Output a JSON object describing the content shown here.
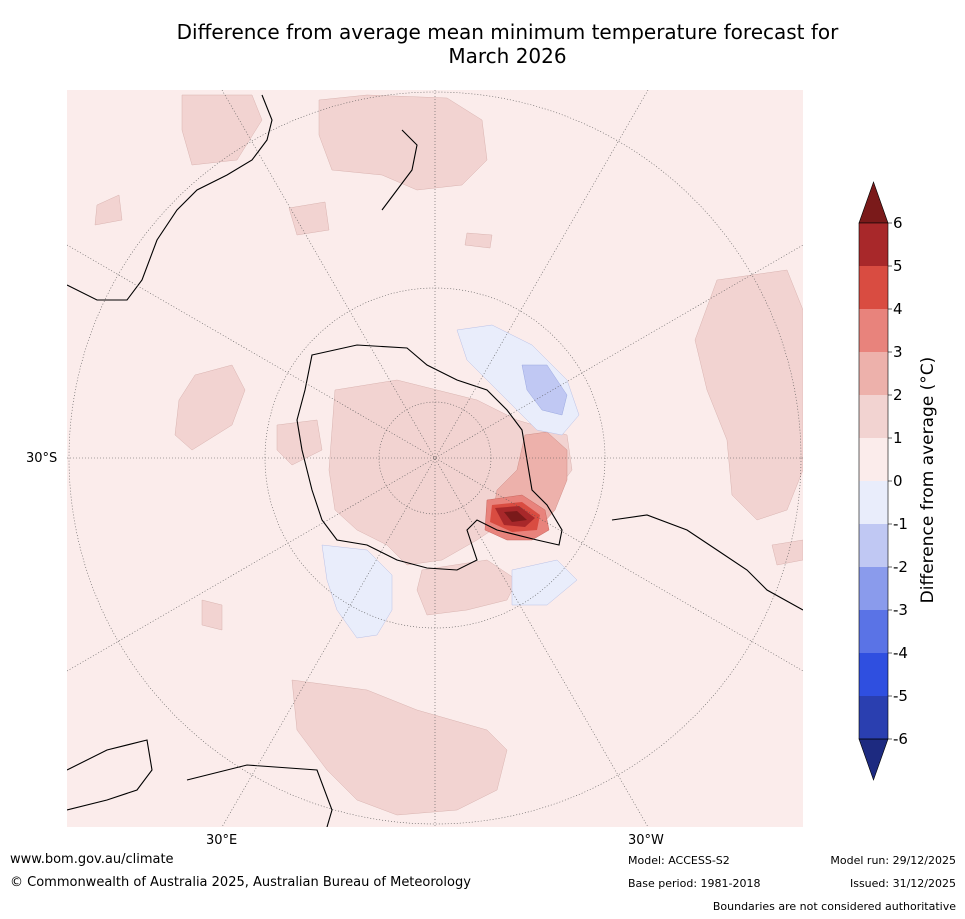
{
  "title_line1": "Difference from average mean minimum temperature forecast for",
  "title_line2": "March 2026",
  "map_labels": {
    "lat_30s": "30°S",
    "lon_30e": "30°E",
    "lon_30w": "30°W"
  },
  "colorbar": {
    "title": "Difference from average (°C)",
    "ticks": [
      "6",
      "5",
      "4",
      "3",
      "2",
      "1",
      "0",
      "-1",
      "-2",
      "-3",
      "-4",
      "-5",
      "-6"
    ],
    "bins": [
      {
        "range": "above 6",
        "color": "#7a1a1a"
      },
      {
        "range": "5 to 6",
        "color": "#a8282a"
      },
      {
        "range": "4 to 5",
        "color": "#d94c41"
      },
      {
        "range": "3 to 4",
        "color": "#e8837c"
      },
      {
        "range": "2 to 3",
        "color": "#edb1ab"
      },
      {
        "range": "1 to 2",
        "color": "#f2d3d1"
      },
      {
        "range": "0 to 1",
        "color": "#fbeceb"
      },
      {
        "range": "-1 to 0",
        "color": "#e9edfb"
      },
      {
        "range": "-2 to -1",
        "color": "#c0c8f3"
      },
      {
        "range": "-3 to -2",
        "color": "#8a9bec"
      },
      {
        "range": "-4 to -3",
        "color": "#5a73e6"
      },
      {
        "range": "-5 to -4",
        "color": "#2f4fe0"
      },
      {
        "range": "-6 to -5",
        "color": "#2a3fb0"
      },
      {
        "range": "below -6",
        "color": "#1d2a80"
      }
    ]
  },
  "footer": {
    "website": "www.bom.gov.au/climate",
    "copyright": "© Commonwealth of Australia 2025, Australian Bureau of Meteorology",
    "model": "Model: ACCESS-S2",
    "base_period": "Base period: 1981-2018",
    "model_run": "Model run: 29/12/2025",
    "issued": "Issued: 31/12/2025",
    "disclaimer": "Boundaries are not considered authoritative"
  },
  "colors": {
    "ocean_background": "#fbeceb",
    "anomaly_1_to_2": "#f2d3d1",
    "anomaly_2_to_3": "#edb1ab",
    "anomaly_3_to_4": "#e8837c",
    "anomaly_4_to_5": "#d94c41",
    "anomaly_5_to_6": "#a8282a",
    "anomaly_above_6": "#7a1a1a",
    "anomaly_neg_0_to_1": "#e9edfb",
    "anomaly_neg_1_to_2": "#c0c8f3"
  }
}
